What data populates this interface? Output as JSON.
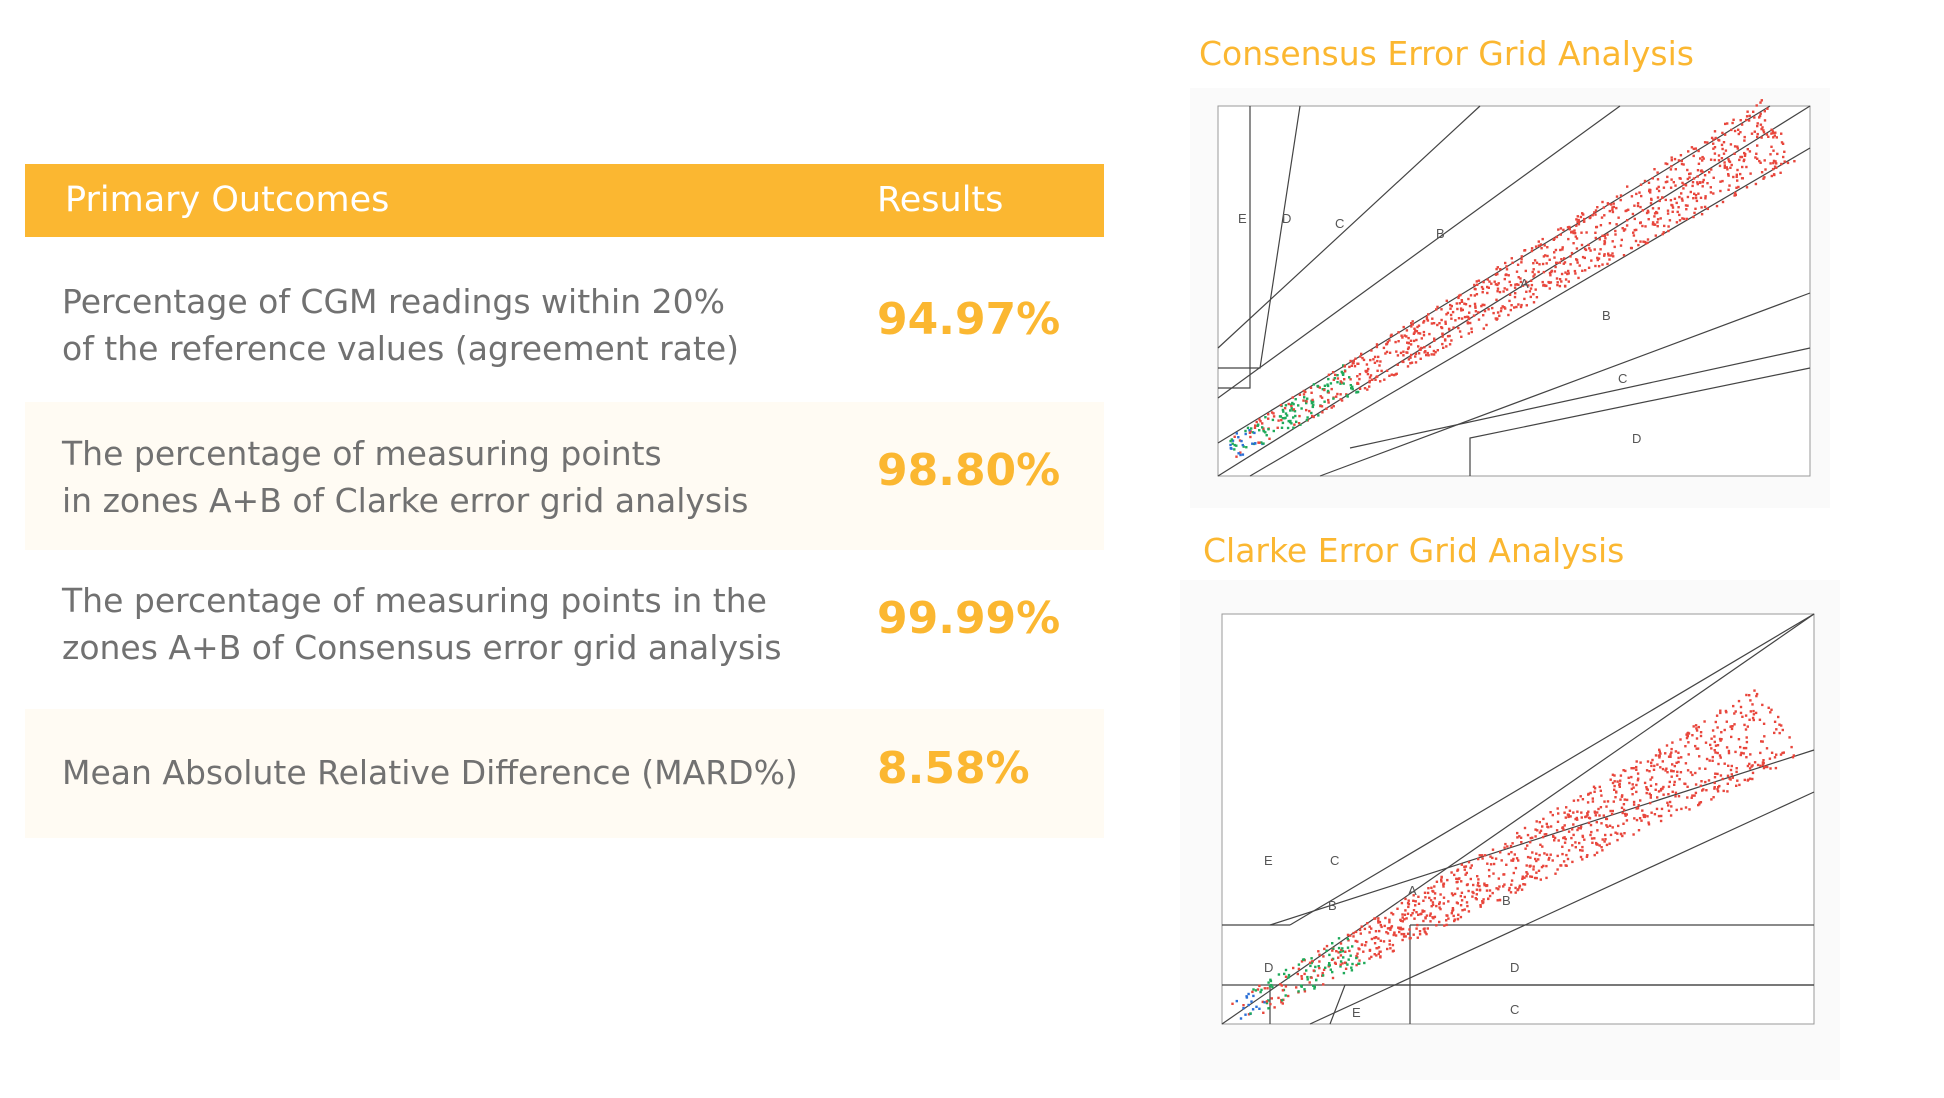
{
  "table": {
    "header": {
      "outcome_label": "Primary Outcomes",
      "result_label": "Results"
    },
    "rows": [
      {
        "line1": "Percentage of CGM readings within 20%",
        "line2": "of the reference values (agreement rate)",
        "value": "94.97%"
      },
      {
        "line1": "The percentage of measuring points",
        "line2": "in zones A+B of Clarke error grid analysis",
        "value": "98.80%"
      },
      {
        "line1": "The percentage of measuring points in the",
        "line2": "zones A+B of Consensus error grid analysis",
        "value": "99.99%"
      },
      {
        "line1": "Mean Absolute Relative Difference (MARD%)",
        "line2": "",
        "value": "8.58%"
      }
    ]
  },
  "charts": {
    "consensus": {
      "title": "Consensus Error Grid Analysis",
      "zone_labels": [
        "E",
        "D",
        "C",
        "B",
        "A",
        "B",
        "C",
        "D"
      ]
    },
    "clarke": {
      "title": "Clarke Error Grid Analysis",
      "zone_labels": [
        "E",
        "C",
        "A",
        "B",
        "D",
        "B",
        "D",
        "C",
        "E"
      ]
    }
  },
  "colors": {
    "accent": "#fbb731",
    "text": "#717171",
    "points_high": "#e8463c",
    "points_low": "#1faa5a",
    "points_extra": "#2b6fd6"
  }
}
